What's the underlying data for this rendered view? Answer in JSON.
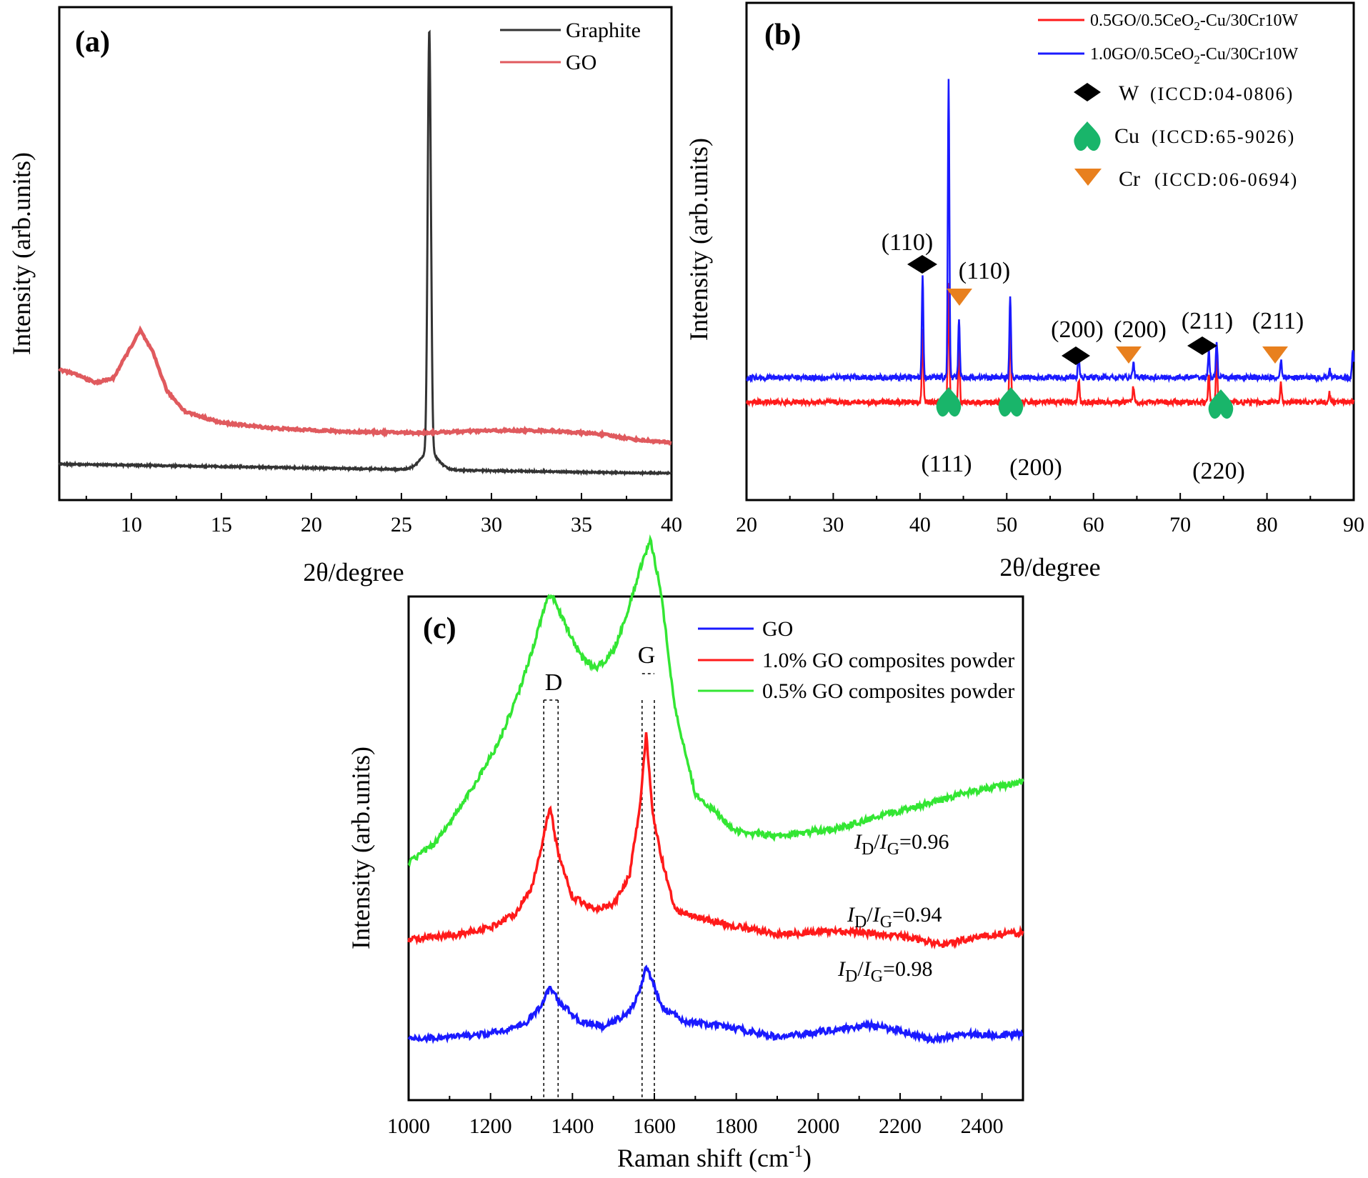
{
  "colors": {
    "graphite": "#333333",
    "go_a": "#e05a5e",
    "red": "#ff1a1a",
    "blue": "#1a1aff",
    "green": "#33e633",
    "w_marker": "#000000",
    "cu_marker": "#19b56a",
    "cr_marker": "#e8801e"
  },
  "chart_data": [
    {
      "id": "a",
      "type": "line",
      "panel_label": "(a)",
      "xlabel": "2θ/degree",
      "ylabel": "Intensity (arb.units)",
      "xlim": [
        6,
        40
      ],
      "xticks": [
        "10",
        "15",
        "20",
        "25",
        "30",
        "35",
        "40"
      ],
      "legend": [
        "Graphite",
        "GO"
      ],
      "series": [
        {
          "name": "Graphite",
          "x": [
            6,
            8,
            10,
            12,
            15,
            20,
            24,
            25.5,
            26.2,
            26.55,
            26.9,
            27.5,
            30,
            35,
            40
          ],
          "y": [
            0.15,
            0.12,
            0.11,
            0.1,
            0.09,
            0.08,
            0.075,
            0.08,
            0.2,
            3.9,
            0.2,
            0.08,
            0.075,
            0.07,
            0.07
          ]
        },
        {
          "name": "GO",
          "x": [
            6,
            7,
            8,
            9,
            9.8,
            10.5,
            11.2,
            12,
            13,
            15,
            18,
            22,
            26,
            30,
            33,
            36,
            38,
            40
          ],
          "y": [
            1.0,
            0.95,
            0.88,
            0.92,
            1.15,
            1.35,
            1.15,
            0.8,
            0.62,
            0.52,
            0.47,
            0.44,
            0.43,
            0.45,
            0.45,
            0.42,
            0.37,
            0.34
          ]
        }
      ]
    },
    {
      "id": "b",
      "type": "line",
      "panel_label": "(b)",
      "xlabel": "2θ/degree",
      "ylabel": "Intensity (arb.units)",
      "xlim": [
        20,
        90
      ],
      "xticks": [
        "20",
        "30",
        "40",
        "50",
        "60",
        "70",
        "80",
        "90"
      ],
      "legend": [
        {
          "name": "0.5GO/0.5CeO",
          "sub": "2",
          "rest": "-Cu/30Cr10W"
        },
        {
          "name": "1.0GO/0.5CeO",
          "sub": "2",
          "rest": "-Cu/30Cr10W"
        }
      ],
      "markers": [
        {
          "phase": "W",
          "icdd": "(ICCD:04-0806)"
        },
        {
          "phase": "Cu",
          "icdd": "(ICCD:65-9026)"
        },
        {
          "phase": "Cr",
          "icdd": "(ICCD:06-0694)"
        }
      ],
      "peak_labels": [
        {
          "text": "(110)",
          "phase": "W",
          "pos": 40.2
        },
        {
          "text": "(110)",
          "phase": "Cr",
          "pos": 44.5
        },
        {
          "text": "(200)",
          "phase": "W",
          "pos": 58.3
        },
        {
          "text": "(200)",
          "phase": "Cr",
          "pos": 64.5
        },
        {
          "text": "(211)",
          "phase": "W",
          "pos": 73.2
        },
        {
          "text": "(211)",
          "phase": "Cr",
          "pos": 81.5
        },
        {
          "text": "(111)",
          "phase": "Cu",
          "pos": 43.3
        },
        {
          "text": "(200)",
          "phase": "Cu",
          "pos": 50.4
        },
        {
          "text": "(220)",
          "phase": "Cu",
          "pos": 74.1
        }
      ],
      "peaks": [
        {
          "pos": 40.3,
          "red": 1.6,
          "blue": 2.3
        },
        {
          "pos": 43.3,
          "red": 2.6,
          "blue": 6.6
        },
        {
          "pos": 44.5,
          "red": 1.3,
          "blue": 1.3
        },
        {
          "pos": 50.4,
          "red": 1.8,
          "blue": 1.8
        },
        {
          "pos": 58.3,
          "red": 0.5,
          "blue": 0.5
        },
        {
          "pos": 64.6,
          "red": 0.35,
          "blue": 0.35
        },
        {
          "pos": 73.3,
          "red": 0.6,
          "blue": 0.6
        },
        {
          "pos": 74.2,
          "red": 1.0,
          "blue": 0.8
        },
        {
          "pos": 81.6,
          "red": 0.4,
          "blue": 0.4
        },
        {
          "pos": 87.2,
          "red": 0.2,
          "blue": 0.2
        },
        {
          "pos": 89.9,
          "red": 0.0,
          "blue": 0.6
        }
      ],
      "baselines": {
        "red": 0.0,
        "blue": 0.55
      }
    },
    {
      "id": "c",
      "type": "line",
      "panel_label": "(c)",
      "xlabel": "Raman shift (cm",
      "xlabel_sup": "-1",
      "xlabel_end": ")",
      "ylabel": "Intensity (arb.units)",
      "xlim": [
        1000,
        2500
      ],
      "xticks": [
        "1000",
        "1200",
        "1400",
        "1600",
        "1800",
        "2000",
        "2200",
        "2400"
      ],
      "legend": [
        "GO",
        "1.0% GO composites powder",
        "0.5% GO composites powder"
      ],
      "band_labels": [
        "D",
        "G"
      ],
      "ratios": [
        {
          "series": "0.5% GO composites powder",
          "ID": "I",
          "sub1": "D",
          "IG": "I",
          "sub2": "G",
          "value": "=0.96"
        },
        {
          "series": "1.0% GO composites powder",
          "ID": "I",
          "sub1": "D",
          "IG": "I",
          "sub2": "G",
          "value": "=0.94"
        },
        {
          "series": "GO",
          "ID": "I",
          "sub1": "D",
          "IG": "I",
          "sub2": "G",
          "value": "=0.98"
        }
      ],
      "series": [
        {
          "name": "GO",
          "x": [
            1000,
            1100,
            1200,
            1280,
            1320,
            1345,
            1370,
            1420,
            1480,
            1540,
            1565,
            1580,
            1600,
            1620,
            1680,
            1800,
            1900,
            2000,
            2120,
            2200,
            2280,
            2350,
            2420,
            2500
          ],
          "y": [
            0.42,
            0.43,
            0.45,
            0.5,
            0.6,
            0.72,
            0.63,
            0.52,
            0.49,
            0.58,
            0.7,
            0.85,
            0.72,
            0.6,
            0.52,
            0.48,
            0.43,
            0.46,
            0.5,
            0.47,
            0.41,
            0.45,
            0.44,
            0.45
          ]
        },
        {
          "name": "1.0% GO composites powder",
          "x": [
            1000,
            1100,
            1200,
            1260,
            1300,
            1325,
            1345,
            1365,
            1400,
            1450,
            1500,
            1540,
            1565,
            1580,
            1595,
            1615,
            1650,
            1750,
            1900,
            2050,
            2200,
            2300,
            2400,
            2500
          ],
          "y": [
            1.0,
            1.02,
            1.07,
            1.15,
            1.3,
            1.55,
            1.78,
            1.5,
            1.25,
            1.18,
            1.2,
            1.38,
            1.78,
            2.2,
            1.75,
            1.5,
            1.17,
            1.1,
            1.03,
            1.05,
            1.02,
            0.97,
            1.02,
            1.04
          ]
        },
        {
          "name": "0.5% GO composites powder",
          "x": [
            1000,
            1060,
            1120,
            1160,
            1220,
            1270,
            1310,
            1335,
            1350,
            1380,
            1420,
            1460,
            1500,
            1540,
            1570,
            1590,
            1615,
            1650,
            1700,
            1800,
            1900,
            2050,
            2200,
            2350,
            2500
          ],
          "y": [
            1.45,
            1.55,
            1.75,
            1.9,
            2.15,
            2.45,
            2.75,
            2.97,
            3.0,
            2.85,
            2.65,
            2.58,
            2.68,
            2.95,
            3.2,
            3.33,
            3.05,
            2.35,
            1.85,
            1.63,
            1.6,
            1.65,
            1.75,
            1.85,
            1.92
          ]
        }
      ]
    }
  ]
}
